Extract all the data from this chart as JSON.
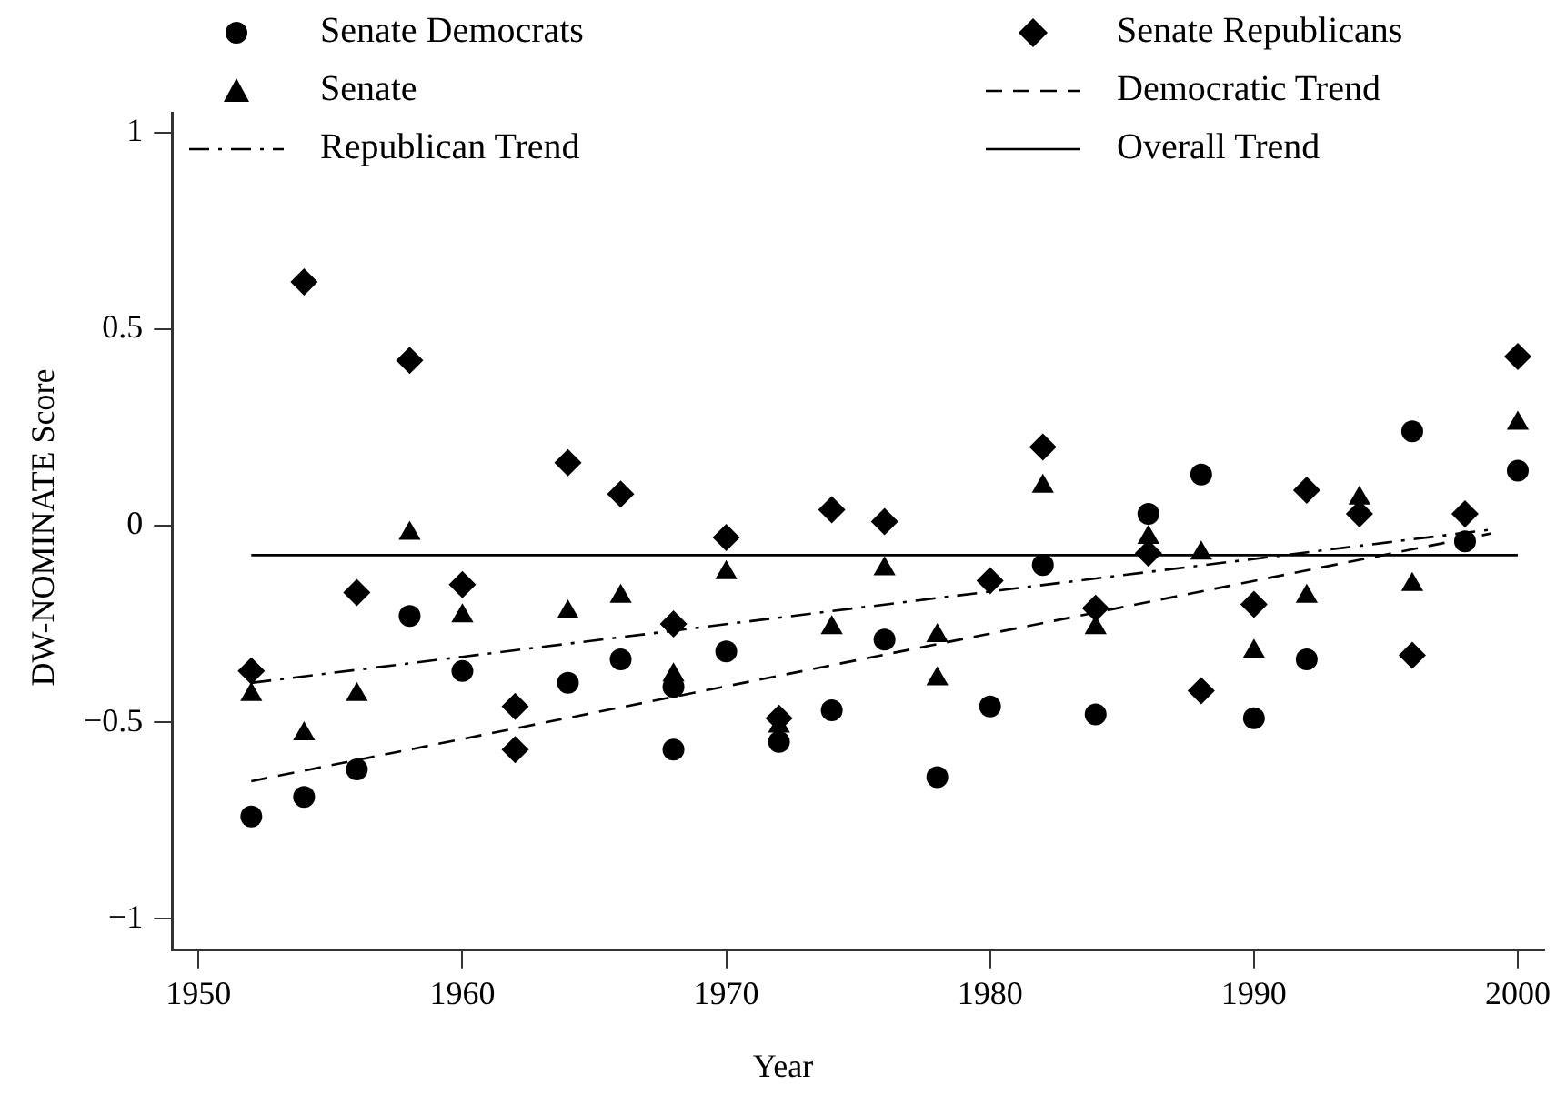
{
  "chart_data": {
    "type": "scatter",
    "xlabel": "Year",
    "ylabel": "DW-NOMINATE Score",
    "xlim": [
      1949,
      2001
    ],
    "xticks": [
      1950,
      1960,
      1970,
      1980,
      1990,
      2000
    ],
    "ylim": [
      -1.08,
      1.05
    ],
    "yticks": [
      {
        "value": -1,
        "label": "−1"
      },
      {
        "value": -0.5,
        "label": "−0.5"
      },
      0,
      0.5,
      1
    ],
    "grid": false,
    "legend": "top",
    "series": [
      {
        "name": "Senate Democrats",
        "type": "scatter",
        "marker": "circle",
        "color": "#000000",
        "x": [
          1952,
          1954,
          1956,
          1958,
          1960,
          1964,
          1966,
          1968,
          1968,
          1970,
          1972,
          1974,
          1976,
          1978,
          1980,
          1982,
          1984,
          1986,
          1988,
          1990,
          1992,
          1996,
          1998,
          2000
        ],
        "values": [
          -0.74,
          -0.69,
          -0.62,
          -0.23,
          -0.37,
          -0.4,
          -0.34,
          -0.41,
          -0.57,
          -0.32,
          -0.55,
          -0.47,
          -0.29,
          -0.64,
          -0.46,
          -0.1,
          -0.48,
          0.03,
          0.13,
          -0.49,
          -0.34,
          0.24,
          -0.04,
          0.14
        ]
      },
      {
        "name": "Senate Republicans",
        "type": "scatter",
        "marker": "diamond",
        "color": "#000000",
        "x": [
          1952,
          1954,
          1956,
          1958,
          1960,
          1962,
          1962,
          1964,
          1966,
          1968,
          1970,
          1972,
          1974,
          1976,
          1980,
          1982,
          1984,
          1986,
          1988,
          1990,
          1992,
          1994,
          1996,
          1998,
          2000
        ],
        "values": [
          -0.37,
          0.62,
          -0.17,
          0.42,
          -0.15,
          -0.46,
          -0.57,
          0.16,
          0.08,
          -0.25,
          -0.03,
          -0.49,
          0.04,
          0.01,
          -0.14,
          0.2,
          -0.21,
          -0.07,
          -0.42,
          -0.2,
          0.09,
          0.03,
          -0.33,
          0.03,
          0.43
        ]
      },
      {
        "name": "Senate",
        "type": "scatter",
        "marker": "triangle",
        "color": "#000000",
        "x": [
          1952,
          1954,
          1956,
          1958,
          1960,
          1964,
          1966,
          1968,
          1970,
          1972,
          1974,
          1976,
          1978,
          1978,
          1982,
          1984,
          1986,
          1988,
          1990,
          1992,
          1994,
          1996,
          2000
        ],
        "values": [
          -0.43,
          -0.53,
          -0.43,
          -0.02,
          -0.23,
          -0.22,
          -0.18,
          -0.38,
          -0.12,
          -0.51,
          -0.26,
          -0.11,
          -0.28,
          -0.39,
          0.1,
          -0.26,
          -0.03,
          -0.07,
          -0.32,
          -0.18,
          0.07,
          -0.15,
          0.26
        ]
      },
      {
        "name": "Democratic Trend",
        "type": "line",
        "line_style": "dashed",
        "color": "#000000",
        "x": [
          1952,
          1999
        ],
        "values": [
          -0.65,
          -0.02
        ]
      },
      {
        "name": "Republican Trend",
        "type": "line",
        "line_style": "dashdot",
        "color": "#000000",
        "x": [
          1952,
          1999
        ],
        "values": [
          -0.4,
          -0.01
        ]
      },
      {
        "name": "Overall Trend",
        "type": "line",
        "line_style": "solid",
        "color": "#000000",
        "x": [
          1952,
          2000
        ],
        "values": [
          -0.075,
          -0.075
        ]
      }
    ]
  }
}
